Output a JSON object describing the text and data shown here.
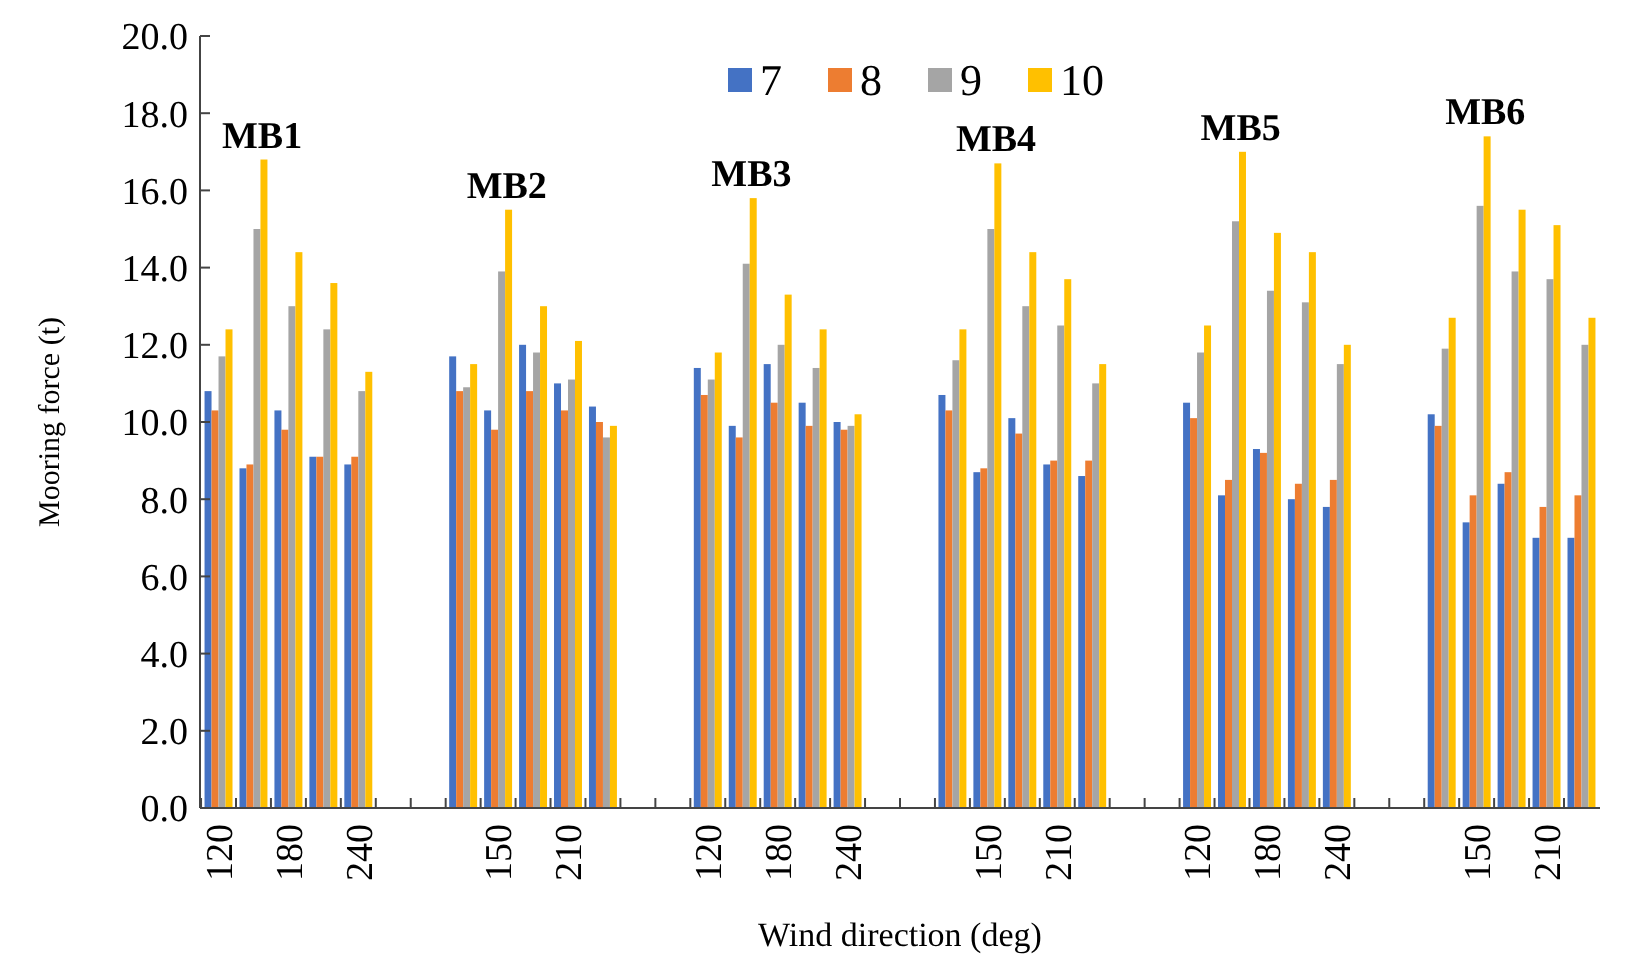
{
  "chart_data": {
    "type": "bar",
    "xlabel": "Wind direction (deg)",
    "ylabel": "Mooring force (t)",
    "categories": [
      "120",
      null,
      "180",
      null,
      "240",
      null,
      null,
      null,
      "150",
      null,
      "210",
      null,
      null,
      null,
      "120",
      null,
      "180",
      null,
      "240",
      null,
      null,
      null,
      "150",
      null,
      "210",
      null,
      null,
      null,
      "120",
      null,
      "180",
      null,
      "240",
      null,
      null,
      null,
      "150",
      null,
      "210",
      null
    ],
    "series": [
      {
        "name": "7",
        "color": "#4472c4",
        "values": [
          10.8,
          8.8,
          10.3,
          9.1,
          8.9,
          null,
          null,
          11.7,
          10.3,
          12.0,
          11.0,
          10.4,
          null,
          null,
          11.4,
          9.9,
          11.5,
          10.5,
          10.0,
          null,
          null,
          10.7,
          8.7,
          10.1,
          8.9,
          8.6,
          null,
          null,
          10.5,
          8.1,
          9.3,
          8.0,
          7.8,
          null,
          null,
          10.2,
          7.4,
          8.4,
          7.0,
          7.0
        ]
      },
      {
        "name": "8",
        "color": "#ed7d31",
        "values": [
          10.3,
          8.9,
          9.8,
          9.1,
          9.1,
          null,
          null,
          10.8,
          9.8,
          10.8,
          10.3,
          10.0,
          null,
          null,
          10.7,
          9.6,
          10.5,
          9.9,
          9.8,
          null,
          null,
          10.3,
          8.8,
          9.7,
          9.0,
          9.0,
          null,
          null,
          10.1,
          8.5,
          9.2,
          8.4,
          8.5,
          null,
          null,
          9.9,
          8.1,
          8.7,
          7.8,
          8.1
        ]
      },
      {
        "name": "9",
        "color": "#a5a5a5",
        "values": [
          11.7,
          15.0,
          13.0,
          12.4,
          10.8,
          null,
          null,
          10.9,
          13.9,
          11.8,
          11.1,
          9.6,
          null,
          null,
          11.1,
          14.1,
          12.0,
          11.4,
          9.9,
          null,
          null,
          11.6,
          15.0,
          13.0,
          12.5,
          11.0,
          null,
          null,
          11.8,
          15.2,
          13.4,
          13.1,
          11.5,
          null,
          null,
          11.9,
          15.6,
          13.9,
          13.7,
          12.0
        ]
      },
      {
        "name": "10",
        "color": "#ffc000",
        "values": [
          12.4,
          16.8,
          14.4,
          13.6,
          11.3,
          null,
          null,
          11.5,
          15.5,
          13.0,
          12.1,
          9.9,
          null,
          null,
          11.8,
          15.8,
          13.3,
          12.4,
          10.2,
          null,
          null,
          12.4,
          16.7,
          14.4,
          13.7,
          11.5,
          null,
          null,
          12.5,
          17.0,
          14.9,
          14.4,
          12.0,
          null,
          null,
          12.7,
          17.4,
          15.5,
          15.1,
          12.7
        ]
      }
    ],
    "ylim": [
      0,
      20
    ],
    "yticks": [
      {
        "value": 0,
        "label": "0.0"
      },
      {
        "value": 2,
        "label": "2.0"
      },
      {
        "value": 4,
        "label": "4.0"
      },
      {
        "value": 6,
        "label": "6.0"
      },
      {
        "value": 8,
        "label": "8.0"
      },
      {
        "value": 10,
        "label": "10.0"
      },
      {
        "value": 12,
        "label": "12.0"
      },
      {
        "value": 14,
        "label": "14.0"
      },
      {
        "value": 16,
        "label": "16.0"
      },
      {
        "value": 18,
        "label": "18.0"
      },
      {
        "value": 20,
        "label": "20.0"
      }
    ],
    "annotations": [
      "MB1",
      "MB2",
      "MB3",
      "MB4",
      "MB5",
      "MB6"
    ],
    "legend": "top",
    "grid": false
  }
}
